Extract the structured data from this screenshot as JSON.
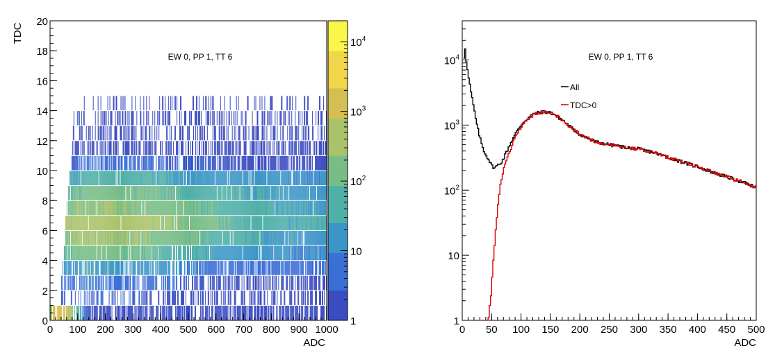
{
  "colors": {
    "palette": [
      "#3b4cc0",
      "#3a6fd6",
      "#3c95c8",
      "#4fb0a8",
      "#78bd87",
      "#aac26a",
      "#d6bf52",
      "#f1d64a",
      "#fbf64a"
    ],
    "all": "#000000",
    "tdc": "#d40000",
    "axis": "#000000"
  },
  "chart_data": [
    {
      "type": "heatmap",
      "title": "EW 0, PP 1, TT 6",
      "xlabel": "ADC",
      "ylabel": "TDC",
      "xlim": [
        0,
        1000
      ],
      "ylim": [
        0,
        20
      ],
      "x_ticks": [
        "0",
        "100",
        "200",
        "300",
        "400",
        "500",
        "600",
        "700",
        "800",
        "900",
        "1000"
      ],
      "y_ticks": [
        "0",
        "2",
        "4",
        "6",
        "8",
        "10",
        "12",
        "14",
        "16",
        "18",
        "20"
      ],
      "z_scale": "log",
      "zlim": [
        1,
        20000
      ],
      "z_ticks": [
        "1",
        "10",
        "10^2",
        "10^3",
        "10^4"
      ],
      "rows": [
        {
          "tdc": 0,
          "onset": 0,
          "peak": 2000,
          "peak_adc": 20,
          "width": 40,
          "tail": 2,
          "sparse": 0.3
        },
        {
          "tdc": 1,
          "onset": 40,
          "peak": 4,
          "peak_adc": 100,
          "width": 300,
          "tail": 1,
          "sparse": 0.55
        },
        {
          "tdc": 2,
          "onset": 40,
          "peak": 8,
          "peak_adc": 120,
          "width": 300,
          "tail": 2,
          "sparse": 0.4
        },
        {
          "tdc": 3,
          "onset": 45,
          "peak": 25,
          "peak_adc": 130,
          "width": 320,
          "tail": 4,
          "sparse": 0.25
        },
        {
          "tdc": 4,
          "onset": 50,
          "peak": 120,
          "peak_adc": 140,
          "width": 320,
          "tail": 10,
          "sparse": 0.1
        },
        {
          "tdc": 5,
          "onset": 55,
          "peak": 300,
          "peak_adc": 140,
          "width": 330,
          "tail": 20,
          "sparse": 0.05
        },
        {
          "tdc": 6,
          "onset": 55,
          "peak": 500,
          "peak_adc": 150,
          "width": 340,
          "tail": 30,
          "sparse": 0.02
        },
        {
          "tdc": 7,
          "onset": 60,
          "peak": 250,
          "peak_adc": 150,
          "width": 360,
          "tail": 25,
          "sparse": 0.02
        },
        {
          "tdc": 8,
          "onset": 65,
          "peak": 120,
          "peak_adc": 160,
          "width": 380,
          "tail": 20,
          "sparse": 0.03
        },
        {
          "tdc": 9,
          "onset": 70,
          "peak": 40,
          "peak_adc": 170,
          "width": 400,
          "tail": 10,
          "sparse": 0.05
        },
        {
          "tdc": 10,
          "onset": 75,
          "peak": 4,
          "peak_adc": 200,
          "width": 400,
          "tail": 2,
          "sparse": 0.3
        },
        {
          "tdc": 11,
          "onset": 80,
          "peak": 2,
          "peak_adc": 200,
          "width": 400,
          "tail": 1,
          "sparse": 0.45
        },
        {
          "tdc": 12,
          "onset": 80,
          "peak": 2,
          "peak_adc": 200,
          "width": 400,
          "tail": 1,
          "sparse": 0.55
        },
        {
          "tdc": 13,
          "onset": 85,
          "peak": 1.5,
          "peak_adc": 200,
          "width": 400,
          "tail": 1,
          "sparse": 0.65
        },
        {
          "tdc": 14,
          "onset": 85,
          "peak": 1.2,
          "peak_adc": 200,
          "width": 400,
          "tail": 1,
          "sparse": 0.8
        }
      ]
    },
    {
      "type": "line",
      "title": "EW 0, PP 1, TT 6",
      "xlabel": "ADC",
      "ylabel": "",
      "xlim": [
        0,
        500
      ],
      "ylim": [
        1,
        40000
      ],
      "y_scale": "log",
      "x_ticks": [
        "0",
        "50",
        "100",
        "150",
        "200",
        "250",
        "300",
        "350",
        "400",
        "450",
        "500"
      ],
      "y_ticks": [
        "1",
        "10",
        "10^2",
        "10^3",
        "10^4"
      ],
      "legend_position": "top-center",
      "series": [
        {
          "name": "All",
          "color": "#000000",
          "x": [
            2,
            4,
            6,
            8,
            10,
            15,
            20,
            25,
            30,
            35,
            40,
            45,
            50,
            55,
            60,
            65,
            70,
            75,
            80,
            90,
            100,
            110,
            120,
            130,
            140,
            150,
            160,
            170,
            180,
            190,
            200,
            225,
            250,
            275,
            300,
            325,
            350,
            375,
            400,
            425,
            450,
            475,
            500
          ],
          "y": [
            6000,
            20000,
            12000,
            8000,
            6000,
            3200,
            1800,
            1000,
            650,
            450,
            350,
            300,
            240,
            220,
            240,
            260,
            300,
            380,
            480,
            720,
            1000,
            1250,
            1450,
            1550,
            1600,
            1550,
            1400,
            1200,
            1000,
            850,
            720,
            560,
            500,
            460,
            430,
            380,
            320,
            270,
            230,
            190,
            160,
            135,
            110
          ]
        },
        {
          "name": "TDC>0",
          "color": "#d40000",
          "x": [
            40,
            45,
            48,
            50,
            52,
            55,
            58,
            60,
            62,
            65,
            68,
            70,
            75,
            80,
            90,
            100,
            110,
            120,
            130,
            140,
            150,
            160,
            170,
            180,
            190,
            200,
            225,
            250,
            275,
            300,
            325,
            350,
            375,
            400,
            425,
            450,
            475,
            500
          ],
          "y": [
            1,
            1,
            2,
            3,
            6,
            12,
            30,
            50,
            80,
            120,
            160,
            200,
            280,
            380,
            650,
            950,
            1200,
            1420,
            1540,
            1600,
            1550,
            1400,
            1200,
            1000,
            850,
            720,
            560,
            500,
            460,
            430,
            380,
            320,
            270,
            230,
            190,
            160,
            135,
            110
          ]
        }
      ]
    }
  ]
}
